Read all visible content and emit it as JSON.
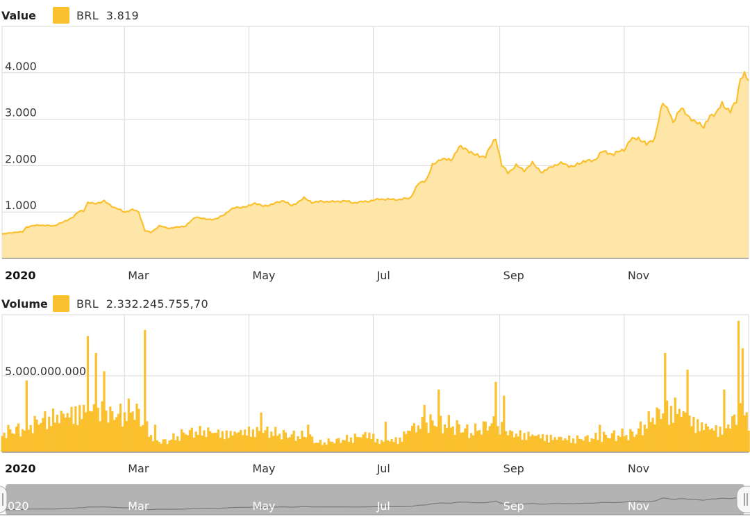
{
  "colors": {
    "accent": "#FBC02D",
    "fill": "#FDE6A8",
    "grid": "#d9d9d9",
    "navigator": "#b3b3b3"
  },
  "value_panel": {
    "title": "Value",
    "series": "BRL",
    "current": "3.819"
  },
  "volume_panel": {
    "title": "Volume",
    "series": "BRL",
    "current": "2.332.245.755,70"
  },
  "time_axis": {
    "year": "2020",
    "months": [
      "Mar",
      "May",
      "Jul",
      "Sep",
      "Nov"
    ]
  },
  "navigator": {
    "year": "020",
    "months": [
      "Mar",
      "May",
      "Jul",
      "Sep",
      "Nov"
    ]
  },
  "chart_data": [
    {
      "type": "area",
      "title": "Value",
      "series": [
        {
          "name": "BRL"
        }
      ],
      "ylim": [
        0,
        5000
      ],
      "yticks": [
        "0",
        "1.000",
        "2.000",
        "3.000",
        "4.000"
      ],
      "xlim": [
        0,
        366
      ],
      "month_ticks": [
        {
          "label": "2020",
          "day": 0
        },
        {
          "label": "Mar",
          "day": 60
        },
        {
          "label": "May",
          "day": 121
        },
        {
          "label": "Jul",
          "day": 182
        },
        {
          "label": "Sep",
          "day": 244
        },
        {
          "label": "Nov",
          "day": 305
        }
      ],
      "points": [
        [
          0,
          520
        ],
        [
          5,
          560
        ],
        [
          10,
          570
        ],
        [
          12,
          680
        ],
        [
          18,
          720
        ],
        [
          25,
          700
        ],
        [
          30,
          780
        ],
        [
          35,
          900
        ],
        [
          38,
          1020
        ],
        [
          40,
          1030
        ],
        [
          42,
          1200
        ],
        [
          45,
          1180
        ],
        [
          50,
          1230
        ],
        [
          55,
          1100
        ],
        [
          60,
          1000
        ],
        [
          64,
          1050
        ],
        [
          67,
          1000
        ],
        [
          70,
          600
        ],
        [
          73,
          560
        ],
        [
          77,
          700
        ],
        [
          82,
          650
        ],
        [
          90,
          700
        ],
        [
          95,
          900
        ],
        [
          100,
          840
        ],
        [
          105,
          850
        ],
        [
          108,
          920
        ],
        [
          112,
          1050
        ],
        [
          115,
          1100
        ],
        [
          120,
          1110
        ],
        [
          124,
          1200
        ],
        [
          128,
          1120
        ],
        [
          134,
          1190
        ],
        [
          138,
          1250
        ],
        [
          142,
          1130
        ],
        [
          148,
          1300
        ],
        [
          152,
          1210
        ],
        [
          158,
          1230
        ],
        [
          162,
          1220
        ],
        [
          168,
          1240
        ],
        [
          172,
          1200
        ],
        [
          177,
          1220
        ],
        [
          182,
          1250
        ],
        [
          185,
          1280
        ],
        [
          190,
          1270
        ],
        [
          195,
          1270
        ],
        [
          200,
          1300
        ],
        [
          204,
          1600
        ],
        [
          208,
          1700
        ],
        [
          211,
          2000
        ],
        [
          215,
          2150
        ],
        [
          220,
          2110
        ],
        [
          224,
          2400
        ],
        [
          228,
          2350
        ],
        [
          232,
          2220
        ],
        [
          237,
          2200
        ],
        [
          240,
          2450
        ],
        [
          242,
          2600
        ],
        [
          245,
          2000
        ],
        [
          248,
          1850
        ],
        [
          252,
          2000
        ],
        [
          256,
          1900
        ],
        [
          260,
          2050
        ],
        [
          265,
          1850
        ],
        [
          270,
          2000
        ],
        [
          275,
          2050
        ],
        [
          280,
          1970
        ],
        [
          285,
          2100
        ],
        [
          290,
          2100
        ],
        [
          294,
          2300
        ],
        [
          300,
          2250
        ],
        [
          305,
          2350
        ],
        [
          308,
          2550
        ],
        [
          312,
          2600
        ],
        [
          316,
          2450
        ],
        [
          320,
          2600
        ],
        [
          322,
          3000
        ],
        [
          324,
          3350
        ],
        [
          327,
          3200
        ],
        [
          329,
          2900
        ],
        [
          333,
          3280
        ],
        [
          337,
          3000
        ],
        [
          341,
          2950
        ],
        [
          344,
          2800
        ],
        [
          347,
          3100
        ],
        [
          350,
          3100
        ],
        [
          353,
          3350
        ],
        [
          357,
          3150
        ],
        [
          360,
          3400
        ],
        [
          362,
          3900
        ],
        [
          364,
          3950
        ],
        [
          366,
          3819
        ]
      ]
    },
    {
      "type": "bar",
      "title": "Volume",
      "series": [
        {
          "name": "BRL"
        }
      ],
      "ylim": [
        0,
        9000000000
      ],
      "yticks": [
        "0",
        "5.000.000.000"
      ],
      "xlim": [
        0,
        366
      ],
      "base": [
        [
          0,
          1500000000
        ],
        [
          10,
          1800000000
        ],
        [
          20,
          2500000000
        ],
        [
          30,
          2800000000
        ],
        [
          40,
          3200000000
        ],
        [
          50,
          3100000000
        ],
        [
          55,
          2800000000
        ],
        [
          60,
          3000000000
        ],
        [
          65,
          3300000000
        ],
        [
          70,
          2000000000
        ],
        [
          75,
          900000000
        ],
        [
          80,
          800000000
        ],
        [
          90,
          1500000000
        ],
        [
          100,
          1600000000
        ],
        [
          110,
          1400000000
        ],
        [
          120,
          1600000000
        ],
        [
          130,
          1600000000
        ],
        [
          140,
          1300000000
        ],
        [
          150,
          1200000000
        ],
        [
          155,
          700000000
        ],
        [
          165,
          900000000
        ],
        [
          175,
          1200000000
        ],
        [
          180,
          1400000000
        ],
        [
          185,
          800000000
        ],
        [
          195,
          1000000000
        ],
        [
          200,
          1800000000
        ],
        [
          210,
          2300000000
        ],
        [
          220,
          2100000000
        ],
        [
          230,
          1500000000
        ],
        [
          240,
          2200000000
        ],
        [
          250,
          1400000000
        ],
        [
          260,
          1300000000
        ],
        [
          270,
          1100000000
        ],
        [
          280,
          1000000000
        ],
        [
          290,
          1100000000
        ],
        [
          300,
          1300000000
        ],
        [
          310,
          1400000000
        ],
        [
          320,
          2800000000
        ],
        [
          330,
          3400000000
        ],
        [
          340,
          2200000000
        ],
        [
          350,
          1700000000
        ],
        [
          355,
          2000000000
        ],
        [
          360,
          2600000000
        ],
        [
          363,
          4500000000
        ],
        [
          366,
          2300000000
        ]
      ],
      "spikes": [
        [
          12,
          4700000000
        ],
        [
          42,
          7600000000
        ],
        [
          46,
          6500000000
        ],
        [
          50,
          5300000000
        ],
        [
          70,
          8000000000
        ],
        [
          75,
          1800000000
        ],
        [
          127,
          2600000000
        ],
        [
          150,
          1800000000
        ],
        [
          188,
          2000000000
        ],
        [
          207,
          3100000000
        ],
        [
          214,
          4100000000
        ],
        [
          242,
          4600000000
        ],
        [
          246,
          3700000000
        ],
        [
          293,
          1800000000
        ],
        [
          325,
          6500000000
        ],
        [
          336,
          5400000000
        ],
        [
          354,
          4100000000
        ],
        [
          361,
          8600000000
        ],
        [
          363,
          6800000000
        ]
      ]
    }
  ]
}
